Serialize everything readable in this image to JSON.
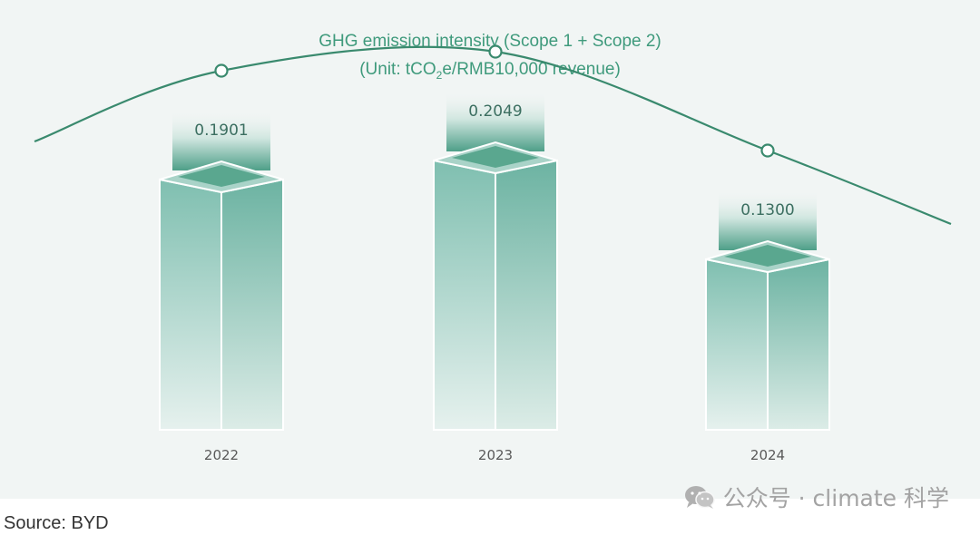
{
  "chart_data": {
    "type": "bar",
    "title": "GHG emission intensity (Scope 1 + Scope 2)",
    "subtitle_parts": [
      "(Unit: tCO",
      "2",
      "e/RMB10,000 revenue)"
    ],
    "categories": [
      "2022",
      "2023",
      "2024"
    ],
    "values": [
      0.1901,
      0.2049,
      0.13
    ],
    "value_labels": [
      "0.1901",
      "0.2049",
      "0.1300"
    ],
    "series": [
      {
        "name": "GHG emission intensity",
        "values": [
          0.1901,
          0.2049,
          0.13
        ]
      }
    ],
    "trend_line": true,
    "ylim": [
      0,
      0.25
    ],
    "xlabel": "",
    "ylabel": "",
    "grid": false
  },
  "colors": {
    "accent": "#3a8a6e",
    "title": "#3f9a7c",
    "background": "#f1f5f4",
    "bar_top": "#7fbfb0",
    "bar_bottom": "#e6f1ee"
  },
  "footer": {
    "source": "Source: BYD",
    "watermark": "公众号 · climate 科学",
    "watermark_icon": "wechat-icon"
  }
}
